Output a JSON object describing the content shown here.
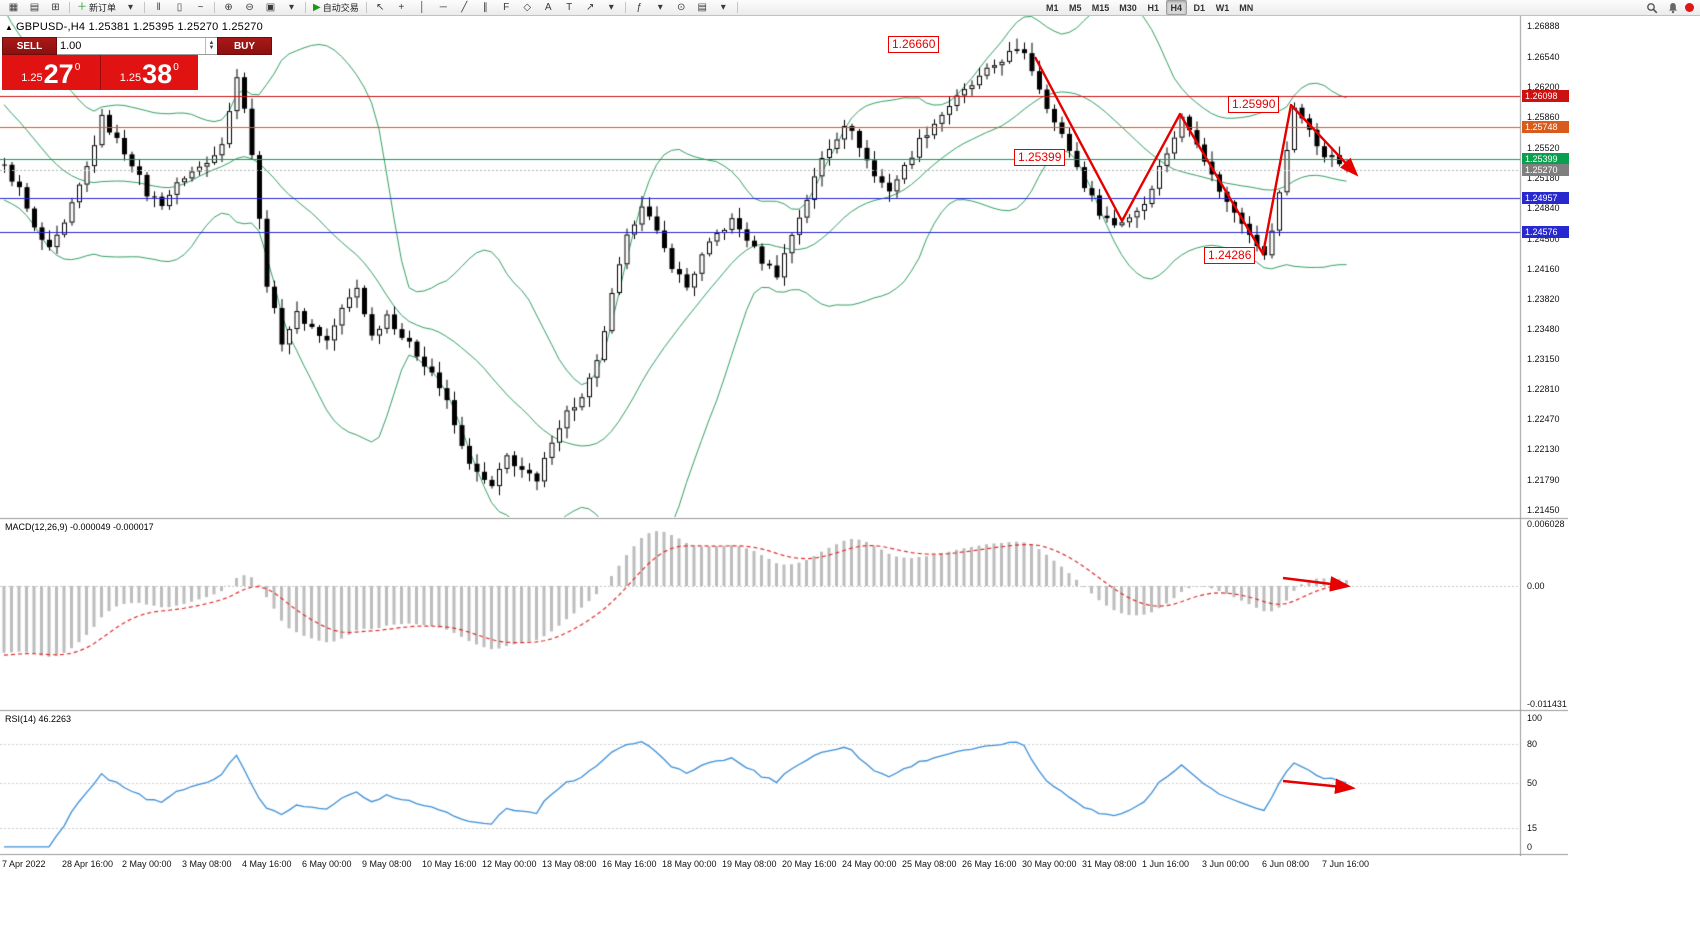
{
  "toolbar": {
    "items": [
      {
        "name": "charts-icon",
        "glyph": "▦"
      },
      {
        "name": "profiles-icon",
        "glyph": "▤"
      },
      {
        "name": "terminal-icon",
        "glyph": "⊞"
      },
      {
        "type": "sep"
      },
      {
        "name": "new-order-button",
        "glyph": "＋",
        "glyph_color": "#189718",
        "label": "新订单"
      },
      {
        "name": "new-order-caret-icon",
        "glyph": "▾"
      },
      {
        "type": "sep"
      },
      {
        "name": "bar-chart-icon",
        "glyph": "‖"
      },
      {
        "name": "candlestick-chart-icon",
        "glyph": "▯"
      },
      {
        "name": "line-chart-icon",
        "glyph": "~"
      },
      {
        "type": "sep"
      },
      {
        "name": "zoom-in-icon",
        "glyph": "⊕"
      },
      {
        "name": "zoom-out-icon",
        "glyph": "⊖"
      },
      {
        "name": "tile-windows-icon",
        "glyph": "▣"
      },
      {
        "name": "windows-caret-icon",
        "glyph": "▾"
      },
      {
        "type": "sep"
      },
      {
        "name": "autotrading-button",
        "glyph": "▶",
        "glyph_color": "#189718",
        "label": "自动交易"
      },
      {
        "type": "sep"
      },
      {
        "name": "cursor-icon",
        "glyph": "↖"
      },
      {
        "name": "crosshair-icon",
        "glyph": "+"
      },
      {
        "name": "vertical-line-icon",
        "glyph": "│"
      },
      {
        "name": "horizontal-line-icon",
        "glyph": "─"
      },
      {
        "name": "trendline-icon",
        "glyph": "╱"
      },
      {
        "name": "equidistant-channel-icon",
        "glyph": "∥"
      },
      {
        "name": "fibonacci-icon",
        "glyph": "F"
      },
      {
        "name": "shapes-icon",
        "glyph": "◇"
      },
      {
        "name": "text-icon",
        "glyph": "A"
      },
      {
        "name": "text-label-icon",
        "glyph": "T"
      },
      {
        "name": "arrows-icon",
        "glyph": "↗"
      },
      {
        "name": "objects-caret-icon",
        "glyph": "▾"
      },
      {
        "type": "sep"
      },
      {
        "name": "indicators-icon",
        "glyph": "ƒ"
      },
      {
        "name": "indicators-caret-icon",
        "glyph": "▾"
      },
      {
        "name": "periods-icon",
        "glyph": "⊙"
      },
      {
        "name": "templates-icon",
        "glyph": "▤"
      },
      {
        "name": "templates-caret-icon",
        "glyph": "▾"
      },
      {
        "type": "sep"
      },
      {
        "type": "gap"
      },
      {
        "type": "tf",
        "name": "timeframe-m1-button",
        "label": "M1"
      },
      {
        "type": "tf",
        "name": "timeframe-m5-button",
        "label": "M5"
      },
      {
        "type": "tf",
        "name": "timeframe-m15-button",
        "label": "M15"
      },
      {
        "type": "tf",
        "name": "timeframe-m30-button",
        "label": "M30"
      },
      {
        "type": "tf",
        "name": "timeframe-h1-button",
        "label": "H1"
      },
      {
        "type": "tf",
        "name": "timeframe-h4-button",
        "label": "H4",
        "active": true
      },
      {
        "type": "tf",
        "name": "timeframe-d1-button",
        "label": "D1"
      },
      {
        "type": "tf",
        "name": "timeframe-w1-button",
        "label": "W1"
      },
      {
        "type": "tf",
        "name": "timeframe-mn-button",
        "label": "MN"
      }
    ]
  },
  "chart_header": "GBPUSD-,H4  1.25381 1.25395 1.25270 1.25270",
  "trade_panel": {
    "sell_label": "SELL",
    "buy_label": "BUY",
    "volume": "1.00",
    "sell_price": {
      "prefix": "1.25",
      "big": "27",
      "sup": "0"
    },
    "buy_price": {
      "prefix": "1.25",
      "big": "38",
      "sup": "0"
    }
  },
  "price_axis": {
    "labels": [
      "1.26888",
      "1.26540",
      "1.26200",
      "1.25860",
      "1.25520",
      "1.25180",
      "1.24840",
      "1.24500",
      "1.24160",
      "1.23820",
      "1.23480",
      "1.23150",
      "1.22810",
      "1.22470",
      "1.22130",
      "1.21790",
      "1.21450"
    ]
  },
  "levels": [
    {
      "label": "1.26098",
      "value": 1.26098,
      "color": "#cc1111"
    },
    {
      "label": "1.25748",
      "value": 1.25748,
      "color": "#d95b1c"
    },
    {
      "label": "1.25399",
      "value": 1.25399,
      "color": "#08a04e"
    },
    {
      "label": "1.24957",
      "value": 1.24957,
      "color": "#2828cf"
    },
    {
      "label": "1.24576",
      "value": 1.24576,
      "color": "#2828cf"
    }
  ],
  "current_price": {
    "label": "1.25270",
    "value": 1.2527,
    "tag_color": "#7f7f7f"
  },
  "annotations": {
    "peak_label": "1.26660",
    "pullback_label": "1.25399",
    "lower_high_label": "1.25990",
    "low_label": "1.24286"
  },
  "macd": {
    "label": "MACD(12,26,9) -0.000049 -0.000017",
    "axis": [
      {
        "label": "0.006028",
        "value": 0.006028
      },
      {
        "label": "0.00",
        "value": 0
      },
      {
        "label": "-0.011431",
        "value": -0.011431
      }
    ]
  },
  "rsi": {
    "label": "RSI(14) 46.2263",
    "axis": [
      {
        "label": "100",
        "value": 100
      },
      {
        "label": "80",
        "value": 80
      },
      {
        "label": "50",
        "value": 50
      },
      {
        "label": "15",
        "value": 15
      },
      {
        "label": "0",
        "value": 0
      }
    ],
    "levels": [
      80,
      50,
      15
    ]
  },
  "date_axis": [
    "7 Apr 2022",
    "28 Apr 16:00",
    "2 May 00:00",
    "3 May 08:00",
    "4 May 16:00",
    "6 May 00:00",
    "9 May 08:00",
    "10 May 16:00",
    "12 May 00:00",
    "13 May 08:00",
    "16 May 16:00",
    "18 May 00:00",
    "19 May 08:00",
    "20 May 16:00",
    "24 May 00:00",
    "25 May 08:00",
    "26 May 16:00",
    "30 May 00:00",
    "31 May 08:00",
    "1 Jun 16:00",
    "3 Jun 00:00",
    "6 Jun 08:00",
    "7 Jun 16:00"
  ],
  "colors": {
    "bull": "#ffffff",
    "bear": "#000000",
    "wick": "#000000",
    "bollinger": "#35a065",
    "macd_hist": "#bdbdbd",
    "macd_signal": "#e03030",
    "rsi_line": "#3e8fd8",
    "annotation": "#e60000",
    "axis_text": "#111111"
  },
  "chart_data": {
    "type": "candlestick",
    "symbol": "GBPUSD",
    "timeframe": "H4",
    "bars_visible": 180,
    "ylim": [
      1.2145,
      1.27
    ],
    "indicators": {
      "bollinger": [
        20,
        2
      ],
      "macd": [
        12,
        26,
        9
      ],
      "rsi": [
        14
      ]
    },
    "price_path": [
      [
        -34,
        1.292
      ],
      [
        -26,
        1.28
      ],
      [
        -18,
        1.269
      ],
      [
        -10,
        1.259
      ],
      [
        -5,
        1.2555
      ],
      [
        0,
        1.253
      ],
      [
        2,
        1.2505
      ],
      [
        4,
        1.246
      ],
      [
        6,
        1.2436
      ],
      [
        8,
        1.2465
      ],
      [
        11,
        1.253
      ],
      [
        13,
        1.2585
      ],
      [
        15,
        1.256
      ],
      [
        17,
        1.2535
      ],
      [
        19,
        1.25
      ],
      [
        21,
        1.249
      ],
      [
        24,
        1.252
      ],
      [
        27,
        1.2535
      ],
      [
        29,
        1.256
      ],
      [
        31,
        1.263
      ],
      [
        32,
        1.26
      ],
      [
        33,
        1.2545
      ],
      [
        34,
        1.247
      ],
      [
        35,
        1.24
      ],
      [
        37,
        1.2335
      ],
      [
        39,
        1.2365
      ],
      [
        41,
        1.235
      ],
      [
        43,
        1.2335
      ],
      [
        45,
        1.237
      ],
      [
        47,
        1.2395
      ],
      [
        49,
        1.234
      ],
      [
        51,
        1.2365
      ],
      [
        53,
        1.234
      ],
      [
        55,
        1.232
      ],
      [
        57,
        1.23
      ],
      [
        59,
        1.2265
      ],
      [
        61,
        1.2215
      ],
      [
        63,
        1.2185
      ],
      [
        65,
        1.217
      ],
      [
        67,
        1.2205
      ],
      [
        69,
        1.219
      ],
      [
        71,
        1.2175
      ],
      [
        73,
        1.2225
      ],
      [
        75,
        1.2255
      ],
      [
        77,
        1.227
      ],
      [
        79,
        1.231
      ],
      [
        81,
        1.2385
      ],
      [
        83,
        1.245
      ],
      [
        85,
        1.249
      ],
      [
        87,
        1.2455
      ],
      [
        89,
        1.242
      ],
      [
        91,
        1.2395
      ],
      [
        93,
        1.243
      ],
      [
        95,
        1.2455
      ],
      [
        97,
        1.247
      ],
      [
        99,
        1.245
      ],
      [
        101,
        1.2425
      ],
      [
        103,
        1.241
      ],
      [
        105,
        1.2455
      ],
      [
        107,
        1.2495
      ],
      [
        109,
        1.254
      ],
      [
        111,
        1.2565
      ],
      [
        112,
        1.258
      ],
      [
        114,
        1.2555
      ],
      [
        116,
        1.252
      ],
      [
        118,
        1.2505
      ],
      [
        120,
        1.253
      ],
      [
        122,
        1.256
      ],
      [
        124,
        1.258
      ],
      [
        126,
        1.26
      ],
      [
        128,
        1.2615
      ],
      [
        130,
        1.263
      ],
      [
        132,
        1.2645
      ],
      [
        134,
        1.2658
      ],
      [
        136,
        1.266
      ],
      [
        138,
        1.262
      ],
      [
        140,
        1.258
      ],
      [
        142,
        1.255
      ],
      [
        144,
        1.251
      ],
      [
        146,
        1.248
      ],
      [
        148,
        1.2465
      ],
      [
        150,
        1.2475
      ],
      [
        152,
        1.249
      ],
      [
        154,
        1.253
      ],
      [
        156,
        1.2565
      ],
      [
        157,
        1.2585
      ],
      [
        159,
        1.256
      ],
      [
        161,
        1.252
      ],
      [
        163,
        1.249
      ],
      [
        165,
        1.247
      ],
      [
        167,
        1.2445
      ],
      [
        168,
        1.2429
      ],
      [
        169,
        1.246
      ],
      [
        170,
        1.25
      ],
      [
        171,
        1.255
      ],
      [
        172,
        1.2599
      ],
      [
        173,
        1.2585
      ],
      [
        174,
        1.257
      ],
      [
        175,
        1.2555
      ],
      [
        176,
        1.2545
      ],
      [
        177,
        1.254
      ],
      [
        178,
        1.2535
      ],
      [
        179,
        1.2527
      ]
    ]
  }
}
